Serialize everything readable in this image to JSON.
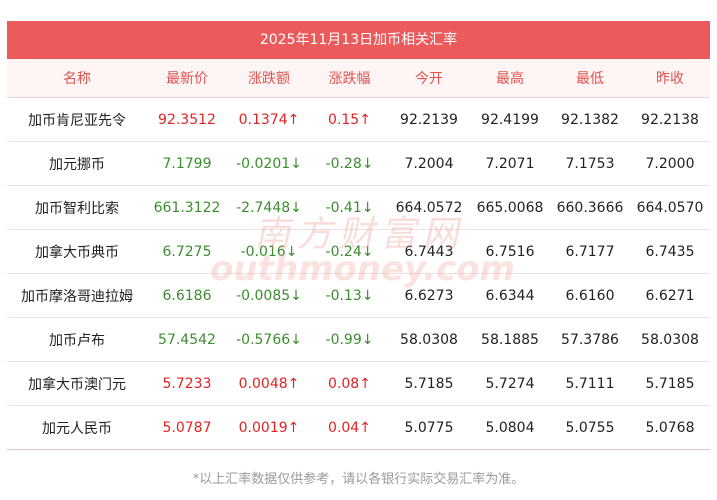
{
  "title": "2025年11月13日加币相关汇率",
  "columns": [
    "名称",
    "最新价",
    "涨跌额",
    "涨跌幅",
    "今开",
    "最高",
    "最低",
    "昨收"
  ],
  "rows": [
    {
      "name": "加币肯尼亚先令",
      "latest": "92.3512",
      "change": "0.1374↑",
      "pct": "0.15↑",
      "open": "92.2139",
      "high": "92.4199",
      "low": "92.1382",
      "prev": "92.2138",
      "trend": "up"
    },
    {
      "name": "加元挪币",
      "latest": "7.1799",
      "change": "-0.0201↓",
      "pct": "-0.28↓",
      "open": "7.2004",
      "high": "7.2071",
      "low": "7.1753",
      "prev": "7.2000",
      "trend": "down"
    },
    {
      "name": "加币智利比索",
      "latest": "661.3122",
      "change": "-2.7448↓",
      "pct": "-0.41↓",
      "open": "664.0572",
      "high": "665.0068",
      "low": "660.3666",
      "prev": "664.0570",
      "trend": "down"
    },
    {
      "name": "加拿大币典币",
      "latest": "6.7275",
      "change": "-0.016↓",
      "pct": "-0.24↓",
      "open": "6.7443",
      "high": "6.7516",
      "low": "6.7177",
      "prev": "6.7435",
      "trend": "down"
    },
    {
      "name": "加币摩洛哥迪拉姆",
      "latest": "6.6186",
      "change": "-0.0085↓",
      "pct": "-0.13↓",
      "open": "6.6273",
      "high": "6.6344",
      "low": "6.6160",
      "prev": "6.6271",
      "trend": "down"
    },
    {
      "name": "加币卢布",
      "latest": "57.4542",
      "change": "-0.5766↓",
      "pct": "-0.99↓",
      "open": "58.0308",
      "high": "58.1885",
      "low": "57.3786",
      "prev": "58.0308",
      "trend": "down"
    },
    {
      "name": "加拿大币澳门元",
      "latest": "5.7233",
      "change": "0.0048↑",
      "pct": "0.08↑",
      "open": "5.7185",
      "high": "5.7274",
      "low": "5.7111",
      "prev": "5.7185",
      "trend": "up"
    },
    {
      "name": "加元人民币",
      "latest": "5.0787",
      "change": "0.0019↑",
      "pct": "0.04↑",
      "open": "5.0775",
      "high": "5.0804",
      "low": "5.0755",
      "prev": "5.0768",
      "trend": "up"
    }
  ],
  "footnote": "*以上汇率数据仅供参考，请以各银行实际交易汇率为准。",
  "watermark": {
    "cn": "南方财富网",
    "en": "outhmoney.com"
  },
  "colors": {
    "header_bg": "#ec5b5b",
    "header_text": "#e0534f",
    "up": "#e32323",
    "down": "#3c8d2f"
  }
}
